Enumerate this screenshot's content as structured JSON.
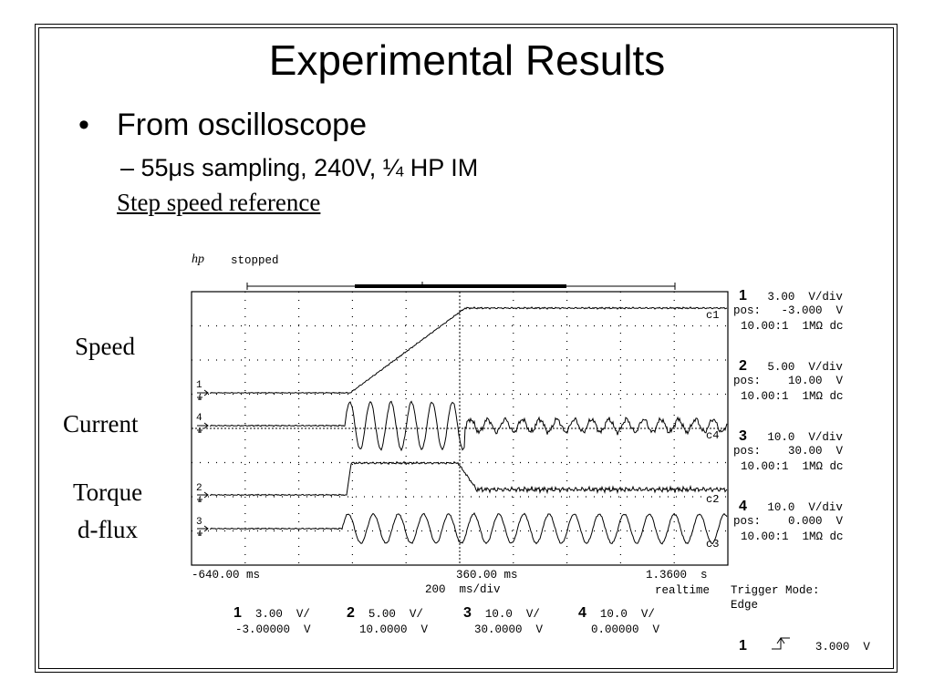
{
  "slide": {
    "title": "Experimental Results",
    "bullet1": "From oscilloscope",
    "bullet2": "– 55μs sampling, 240V, ¼ HP IM",
    "subheading": "Step speed reference"
  },
  "labels": {
    "speed": "Speed",
    "current": "Current",
    "torque": "Torque",
    "dflux": "d-flux"
  },
  "scope": {
    "logo": "hp",
    "status": "stopped",
    "trace_labels": [
      "c1",
      "c4",
      "c2",
      "c3"
    ],
    "marker_labels": [
      "1",
      "4",
      "2",
      "3"
    ],
    "channels": [
      {
        "num": "1",
        "vdiv": "3.00  V/div",
        "pos": "pos:   -3.000  V",
        "coupling": "10.00:1  1MΩ dc"
      },
      {
        "num": "2",
        "vdiv": "5.00  V/div",
        "pos": "pos:    10.00  V",
        "coupling": "10.00:1  1MΩ dc"
      },
      {
        "num": "3",
        "vdiv": "10.0  V/div",
        "pos": "pos:    30.00  V",
        "coupling": "10.00:1  1MΩ dc"
      },
      {
        "num": "4",
        "vdiv": "10.0  V/div",
        "pos": "pos:    0.000  V",
        "coupling": "10.00:1  1MΩ dc"
      }
    ],
    "time_left": "-640.00 ms",
    "time_center": "360.00 ms",
    "time_right": "1.3600  s",
    "timebase": "200  ms/div",
    "mode": "realtime",
    "trigger_mode_label": "Trigger Mode:",
    "trigger_mode_value": "Edge",
    "summary": [
      {
        "num": "1",
        "scale": "3.00  V/",
        "offset": "-3.00000  V"
      },
      {
        "num": "2",
        "scale": "5.00  V/",
        "offset": "10.0000  V"
      },
      {
        "num": "3",
        "scale": "10.0  V/",
        "offset": "30.0000  V"
      },
      {
        "num": "4",
        "scale": "10.0  V/",
        "offset": "0.00000  V"
      }
    ],
    "trigger": {
      "num": "1",
      "level": "3.000  V"
    }
  }
}
